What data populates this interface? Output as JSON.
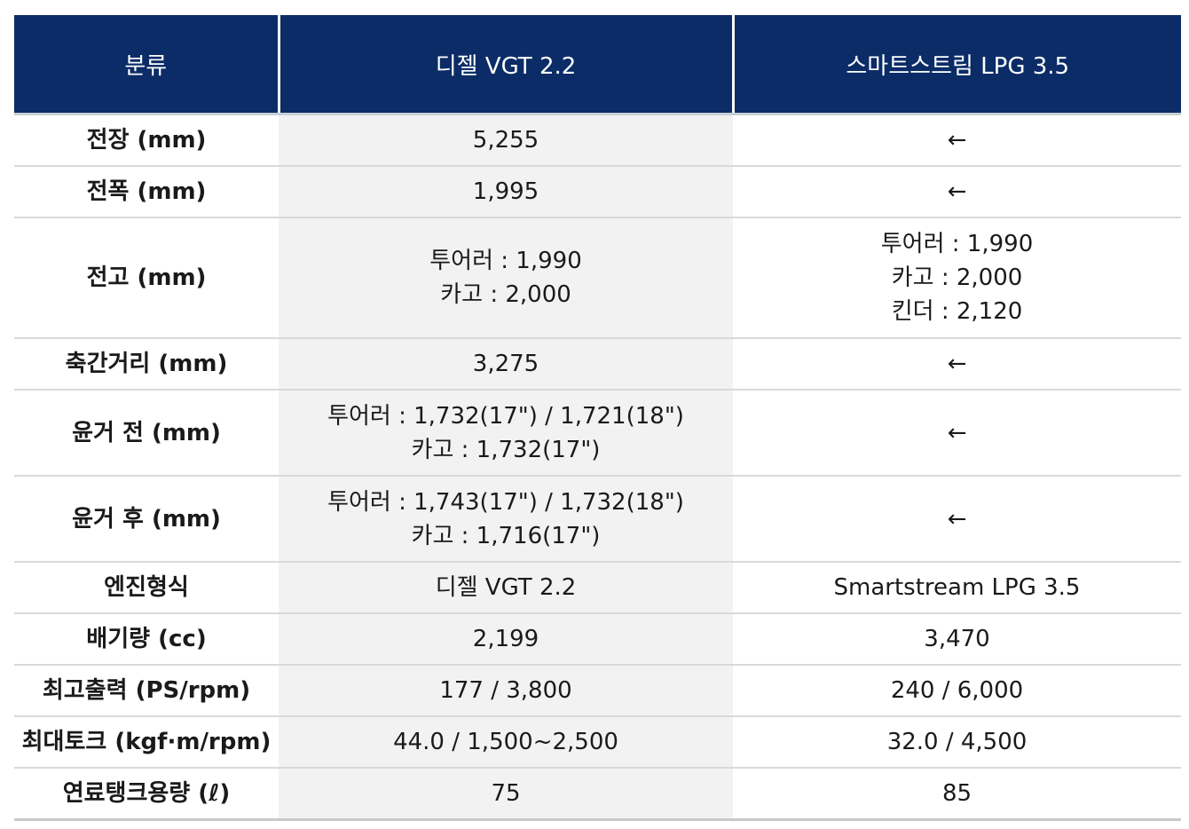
{
  "header": {
    "category": "분류",
    "diesel": "디젤 VGT 2.2",
    "lpg": "스마트스트림 LPG 3.5"
  },
  "rows": [
    {
      "label": "전장 (mm)",
      "diesel": [
        "5,255"
      ],
      "lpg": [
        "←"
      ]
    },
    {
      "label": "전폭 (mm)",
      "diesel": [
        "1,995"
      ],
      "lpg": [
        "←"
      ]
    },
    {
      "label": "전고 (mm)",
      "diesel": [
        "투어러 : 1,990",
        "카고 : 2,000"
      ],
      "lpg": [
        "투어러 : 1,990",
        "카고 : 2,000",
        "킨더 : 2,120"
      ]
    },
    {
      "label": "축간거리 (mm)",
      "diesel": [
        "3,275"
      ],
      "lpg": [
        "←"
      ]
    },
    {
      "label": "윤거 전 (mm)",
      "diesel": [
        "투어러 : 1,732(17\") / 1,721(18\")",
        "카고 : 1,732(17\")"
      ],
      "lpg": [
        "←"
      ]
    },
    {
      "label": "윤거 후 (mm)",
      "diesel": [
        "투어러 : 1,743(17\") / 1,732(18\")",
        "카고 : 1,716(17\")"
      ],
      "lpg": [
        "←"
      ]
    },
    {
      "label": "엔진형식",
      "diesel": [
        "디젤 VGT 2.2"
      ],
      "lpg": [
        "Smartstream LPG 3.5"
      ]
    },
    {
      "label": "배기량 (cc)",
      "diesel": [
        "2,199"
      ],
      "lpg": [
        "3,470"
      ]
    },
    {
      "label": "최고출력 (PS/rpm)",
      "diesel": [
        "177 / 3,800"
      ],
      "lpg": [
        "240 / 6,000"
      ]
    },
    {
      "label": "최대토크 (kgf·m/rpm)",
      "diesel": [
        "44.0 / 1,500~2,500"
      ],
      "lpg": [
        "32.0 / 4,500"
      ]
    },
    {
      "label": "연료탱크용량 (ℓ)",
      "diesel": [
        "75"
      ],
      "lpg": [
        "85"
      ]
    }
  ],
  "colors": {
    "header_bg": "#0b2c67",
    "header_text": "#ffffff",
    "diesel_column_bg": "#f2f2f2",
    "row_divider": "#d9d9d9"
  }
}
